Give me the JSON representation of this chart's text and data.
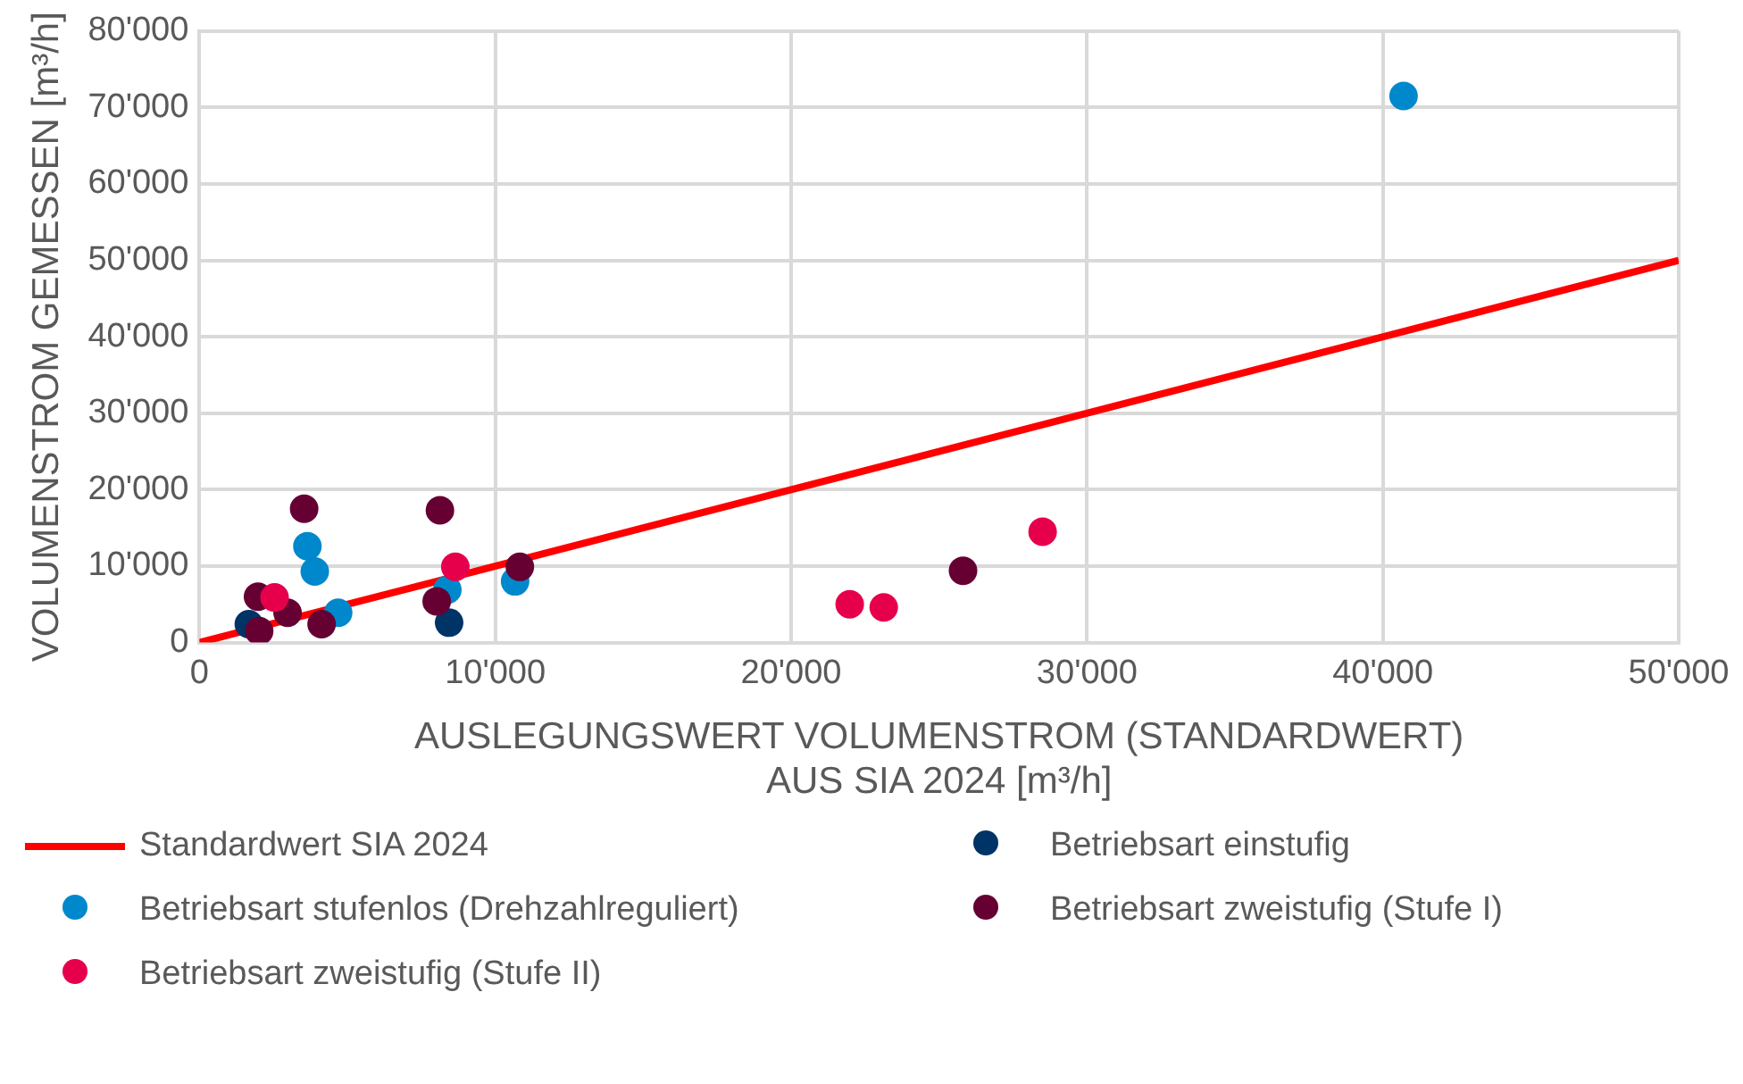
{
  "chart_data": {
    "type": "scatter",
    "xlabel": "AUSLEGUNGSWERT VOLUMENSTROM (STANDARDWERT)\nAUS SIA 2024 [m³/h]",
    "ylabel": "VOLUMENSTROM GEMESSEN [m³/h]",
    "xlim": [
      0,
      50000
    ],
    "xticks": [
      0,
      {
        "value": 10000,
        "label": "10'000"
      },
      {
        "value": 20000,
        "label": "20'000"
      },
      {
        "value": 30000,
        "label": "30'000"
      },
      {
        "value": 40000,
        "label": "40'000"
      },
      {
        "value": 50000,
        "label": "50'000"
      }
    ],
    "ylim": [
      0,
      80000
    ],
    "yticks": [
      0,
      {
        "value": 10000,
        "label": "10'000"
      },
      {
        "value": 20000,
        "label": "20'000"
      },
      {
        "value": 30000,
        "label": "30'000"
      },
      {
        "value": 40000,
        "label": "40'000"
      },
      {
        "value": 50000,
        "label": "50'000"
      },
      {
        "value": 60000,
        "label": "60'000"
      },
      {
        "value": 70000,
        "label": "70'000"
      },
      {
        "value": 80000,
        "label": "80'000"
      }
    ],
    "grid": true,
    "legend": "bottom",
    "marker": "circle",
    "series": [
      {
        "name": "Standardwert SIA 2024",
        "type": "line",
        "marker": "none",
        "color": "#ff0000",
        "x": [
          0,
          50000
        ],
        "values": [
          0,
          50000
        ]
      },
      {
        "name": "Betriebsart einstufig",
        "color": "#003366",
        "x": [
          1670,
          8440
        ],
        "values": [
          2400,
          2600
        ]
      },
      {
        "name": "Betriebsart stufenlos (Drehzahlreguliert)",
        "color": "#0088cc",
        "x": [
          3650,
          3900,
          4690,
          8380,
          10670,
          40700
        ],
        "values": [
          12600,
          9300,
          3900,
          6900,
          8000,
          71500
        ]
      },
      {
        "name": "Betriebsart zweistufig (Stufe I)",
        "color": "#660033",
        "x": [
          3540,
          8130,
          1980,
          2980,
          2020,
          4130,
          8020,
          10830,
          25810
        ],
        "values": [
          17500,
          17300,
          6000,
          3900,
          1500,
          2400,
          5400,
          9900,
          9400
        ]
      },
      {
        "name": "Betriebsart zweistufig (Stufe II)",
        "color": "#e6004c",
        "x": [
          2540,
          8650,
          21980,
          23130,
          28500
        ],
        "values": [
          5900,
          9900,
          5000,
          4600,
          14500
        ]
      }
    ]
  }
}
